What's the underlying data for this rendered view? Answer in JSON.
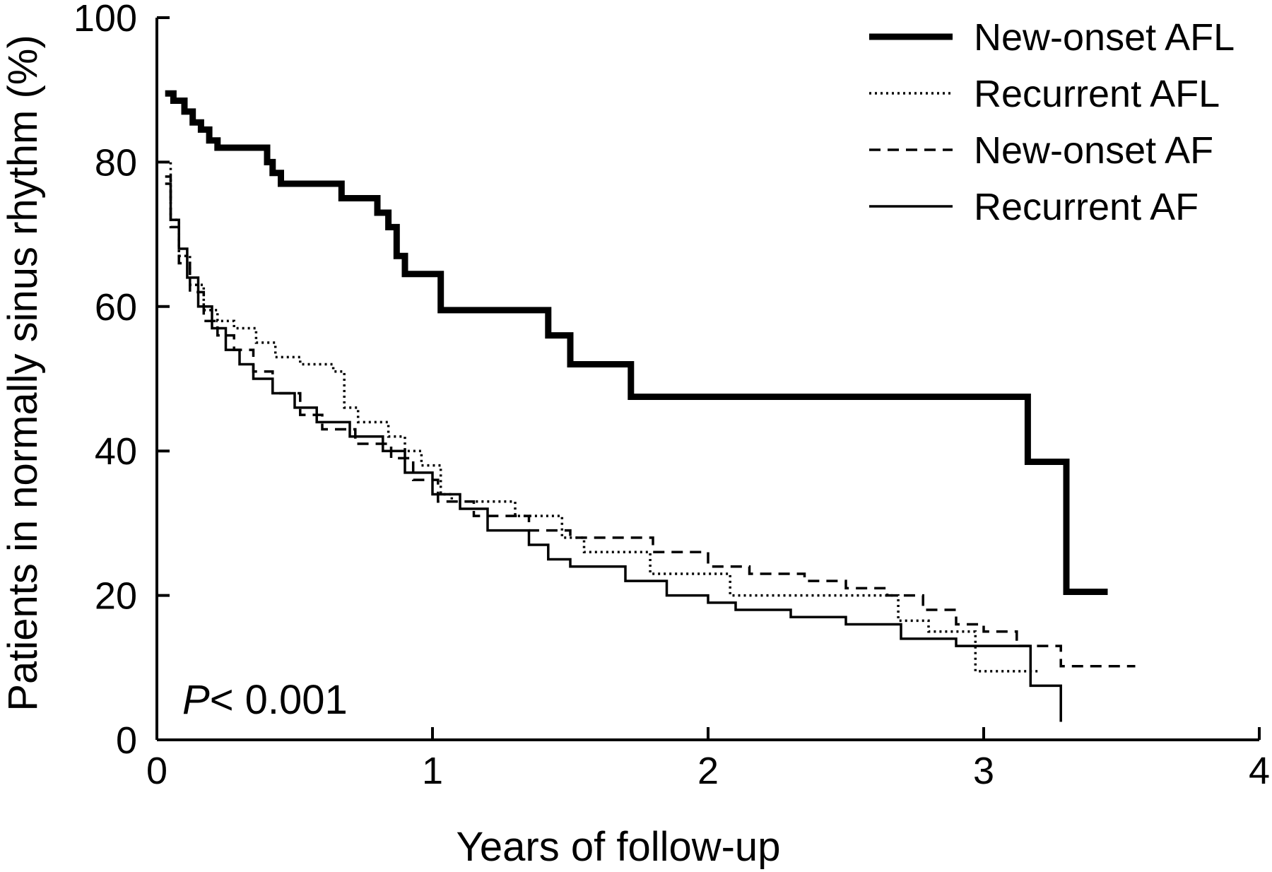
{
  "chart_data": {
    "type": "line",
    "step": true,
    "xlabel": "Years of follow-up",
    "ylabel": "Patients in normally sinus rhythm (%)",
    "xlim": [
      0,
      4
    ],
    "ylim": [
      0,
      100
    ],
    "xticks": [
      0,
      1,
      2,
      3,
      4
    ],
    "yticks": [
      0,
      20,
      40,
      60,
      80,
      100
    ],
    "grid": false,
    "legend_position": "top-right",
    "annotation": {
      "italic": "P",
      "rest": "< 0.001"
    },
    "series": [
      {
        "name": "New-onset AFL",
        "style": "thick-solid",
        "x": [
          0.03,
          0.06,
          0.1,
          0.13,
          0.16,
          0.19,
          0.22,
          0.3,
          0.4,
          0.42,
          0.45,
          0.5,
          0.6,
          0.67,
          0.75,
          0.8,
          0.84,
          0.87,
          0.9,
          0.93,
          1.03,
          1.2,
          1.42,
          1.5,
          1.6,
          1.72,
          2.0,
          3.0,
          3.16,
          3.3,
          3.45
        ],
        "y": [
          89.5,
          88.5,
          87,
          85.5,
          84.5,
          83,
          82,
          82,
          80,
          78.5,
          77,
          77,
          77,
          75,
          75,
          73,
          71,
          67,
          64.5,
          64.5,
          59.5,
          59.5,
          56,
          52,
          52,
          47.5,
          47.5,
          47.5,
          38.5,
          20.5,
          20.5
        ]
      },
      {
        "name": "Recurrent AFL",
        "style": "dotted",
        "x": [
          0.03,
          0.05,
          0.08,
          0.12,
          0.17,
          0.22,
          0.28,
          0.36,
          0.43,
          0.52,
          0.58,
          0.64,
          0.68,
          0.73,
          0.78,
          0.84,
          0.9,
          0.96,
          1.03,
          1.07,
          1.3,
          1.47,
          1.55,
          1.79,
          1.98,
          2.08,
          2.45,
          2.69,
          2.8,
          2.97,
          3.14,
          3.2
        ],
        "y": [
          80,
          72,
          67,
          63,
          59.5,
          58,
          57,
          55,
          53,
          52,
          52,
          51,
          46,
          44,
          44,
          42,
          40,
          38,
          34,
          33,
          31,
          28,
          26,
          23,
          23,
          20,
          20,
          16.5,
          15,
          9.5,
          9.5,
          9.5
        ]
      },
      {
        "name": "New-onset AF",
        "style": "dashed",
        "x": [
          0.03,
          0.05,
          0.08,
          0.12,
          0.17,
          0.22,
          0.28,
          0.35,
          0.42,
          0.52,
          0.6,
          0.72,
          0.85,
          0.93,
          1.02,
          1.15,
          1.35,
          1.5,
          1.65,
          1.8,
          1.9,
          2.0,
          2.15,
          2.35,
          2.5,
          2.65,
          2.78,
          2.9,
          3.0,
          3.12,
          3.15,
          3.28,
          3.55
        ],
        "y": [
          78,
          71,
          66,
          62,
          58,
          56,
          54,
          51,
          48,
          45,
          43,
          41,
          39,
          36,
          33,
          31,
          29,
          28,
          28,
          26,
          26,
          24,
          23,
          22,
          21,
          20,
          18,
          16,
          15,
          13,
          13,
          10.2,
          10.2
        ]
      },
      {
        "name": "Recurrent AF",
        "style": "solid",
        "x": [
          0.03,
          0.05,
          0.08,
          0.11,
          0.15,
          0.2,
          0.25,
          0.3,
          0.35,
          0.42,
          0.5,
          0.58,
          0.7,
          0.82,
          0.9,
          1.0,
          1.1,
          1.2,
          1.35,
          1.42,
          1.5,
          1.7,
          1.85,
          2.0,
          2.1,
          2.3,
          2.5,
          2.7,
          2.9,
          3.0,
          3.17,
          3.28
        ],
        "y": [
          77,
          72,
          68,
          64,
          60,
          57,
          54,
          52,
          50,
          48,
          46,
          44,
          42,
          40,
          37,
          34,
          32,
          29,
          27,
          25,
          24,
          22,
          20,
          19,
          18,
          17,
          16,
          14,
          13,
          13,
          7.5,
          2.5
        ]
      }
    ]
  }
}
